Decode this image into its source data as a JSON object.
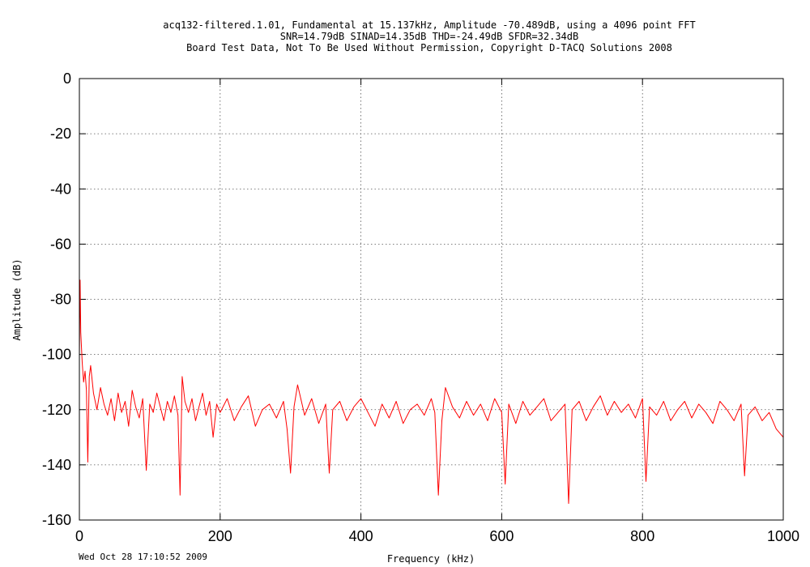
{
  "chart_data": {
    "type": "line",
    "title_lines": [
      "acq132-filtered.1.01, Fundamental at 15.137kHz, Amplitude -70.489dB, using a 4096 point FFT",
      "SNR=14.79dB SINAD=14.35dB THD=-24.49dB SFDR=32.34dB",
      "Board Test Data, Not To Be Used Without Permission, Copyright D-TACQ Solutions 2008"
    ],
    "xlabel": "Frequency (kHz)",
    "ylabel": "Amplitude (dB)",
    "xlim": [
      0,
      1000
    ],
    "ylim": [
      -160,
      0
    ],
    "xticks": [
      0,
      200,
      400,
      600,
      800,
      1000
    ],
    "yticks": [
      0,
      -20,
      -40,
      -60,
      -80,
      -100,
      -120,
      -140,
      -160
    ],
    "grid": true,
    "timestamp": "Wed Oct 28 17:10:52 2009",
    "series": [
      {
        "color": "#ff0000",
        "x": [
          0,
          1,
          2,
          4,
          6,
          8,
          10,
          12,
          14,
          16,
          20,
          25,
          30,
          35,
          40,
          45,
          50,
          55,
          60,
          65,
          70,
          75,
          80,
          85,
          90,
          95,
          100,
          105,
          110,
          115,
          120,
          125,
          130,
          135,
          140,
          143,
          146,
          150,
          155,
          160,
          165,
          170,
          175,
          180,
          185,
          190,
          195,
          200,
          210,
          220,
          230,
          240,
          250,
          260,
          270,
          280,
          290,
          295,
          300,
          305,
          310,
          320,
          330,
          340,
          350,
          355,
          360,
          370,
          380,
          390,
          400,
          410,
          420,
          430,
          440,
          450,
          460,
          470,
          480,
          490,
          500,
          505,
          510,
          515,
          520,
          530,
          540,
          550,
          560,
          570,
          580,
          590,
          600,
          605,
          610,
          620,
          630,
          640,
          650,
          660,
          670,
          680,
          690,
          695,
          700,
          710,
          720,
          730,
          740,
          750,
          760,
          770,
          780,
          790,
          800,
          805,
          810,
          820,
          830,
          840,
          850,
          860,
          870,
          880,
          890,
          900,
          910,
          920,
          930,
          940,
          945,
          950,
          960,
          970,
          980,
          990,
          1000
        ],
        "y": [
          -100,
          -73,
          -92,
          -103,
          -110,
          -106,
          -113,
          -139,
          -108,
          -104,
          -114,
          -120,
          -112,
          -118,
          -122,
          -116,
          -124,
          -114,
          -121,
          -117,
          -126,
          -113,
          -119,
          -123,
          -116,
          -142,
          -118,
          -121,
          -114,
          -119,
          -124,
          -117,
          -121,
          -115,
          -122,
          -151,
          -108,
          -117,
          -121,
          -116,
          -124,
          -119,
          -114,
          -122,
          -117,
          -130,
          -118,
          -121,
          -116,
          -124,
          -119,
          -115,
          -126,
          -120,
          -118,
          -123,
          -117,
          -127,
          -143,
          -119,
          -111,
          -122,
          -116,
          -125,
          -118,
          -143,
          -120,
          -117,
          -124,
          -119,
          -116,
          -121,
          -126,
          -118,
          -123,
          -117,
          -125,
          -120,
          -118,
          -122,
          -116,
          -121,
          -151,
          -124,
          -112,
          -119,
          -123,
          -117,
          -122,
          -118,
          -124,
          -116,
          -121,
          -147,
          -118,
          -125,
          -117,
          -122,
          -119,
          -116,
          -124,
          -121,
          -118,
          -154,
          -120,
          -117,
          -124,
          -119,
          -115,
          -122,
          -117,
          -121,
          -118,
          -123,
          -116,
          -146,
          -119,
          -122,
          -117,
          -124,
          -120,
          -117,
          -123,
          -118,
          -121,
          -125,
          -117,
          -120,
          -124,
          -118,
          -144,
          -122,
          -119,
          -124,
          -121,
          -127,
          -130
        ]
      }
    ]
  }
}
